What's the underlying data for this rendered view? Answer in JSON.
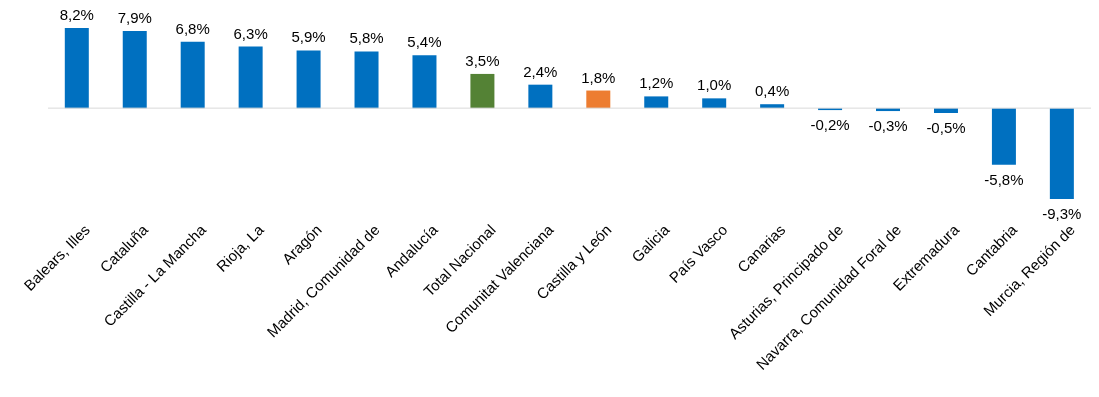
{
  "chart_data": {
    "type": "bar",
    "categories": [
      "Balears, Illes",
      "Cataluña",
      "Castilla - La Mancha",
      "Rioja, La",
      "Aragón",
      "Madrid, Comunidad de",
      "Andalucía",
      "Total Nacional",
      "Comunitat Valenciana",
      "Castilla y León",
      "Galicia",
      "País Vasco",
      "Canarias",
      "Asturias, Principado de",
      "Navarra, Comunidad Foral de",
      "Extremadura",
      "Cantabria",
      "Murcia, Región de"
    ],
    "values": [
      8.2,
      7.9,
      6.8,
      6.3,
      5.9,
      5.8,
      5.4,
      3.5,
      2.4,
      1.8,
      1.2,
      1.0,
      0.4,
      -0.2,
      -0.3,
      -0.5,
      -5.8,
      -9.3
    ],
    "value_labels": [
      "8,2%",
      "7,9%",
      "6,8%",
      "6,3%",
      "5,9%",
      "5,8%",
      "5,4%",
      "3,5%",
      "2,4%",
      "1,8%",
      "1,2%",
      "1,0%",
      "0,4%",
      "-0,2%",
      "-0,3%",
      "-0,5%",
      "-5,8%",
      "-9,3%"
    ],
    "colors": [
      "#0070c0",
      "#0070c0",
      "#0070c0",
      "#0070c0",
      "#0070c0",
      "#0070c0",
      "#0070c0",
      "#548235",
      "#0070c0",
      "#ed7d31",
      "#0070c0",
      "#0070c0",
      "#0070c0",
      "#0070c0",
      "#0070c0",
      "#0070c0",
      "#0070c0",
      "#0070c0"
    ],
    "grid": false
  }
}
